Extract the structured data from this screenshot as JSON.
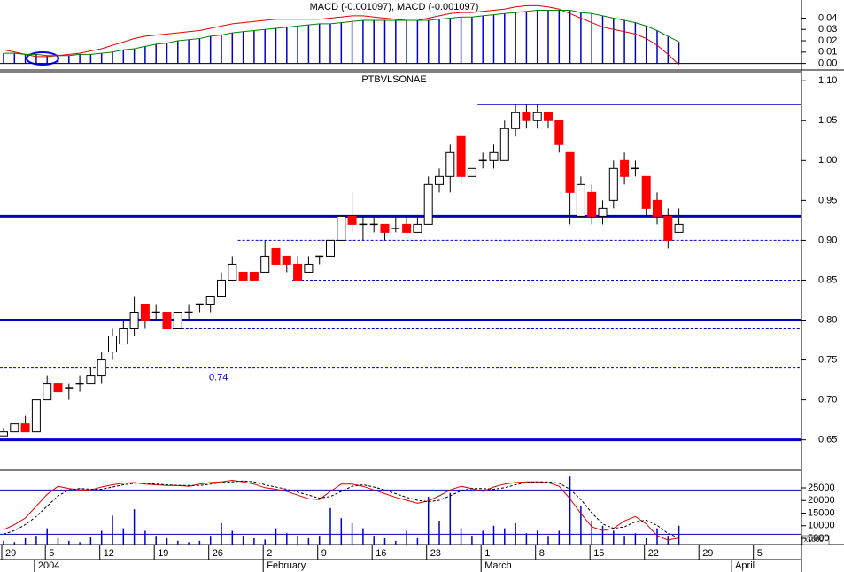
{
  "chart_data": [
    {
      "type": "macd",
      "title": "MACD (-0.001097), MACD (-0.001097)",
      "ylim": [
        -0.005,
        0.056
      ],
      "yticks": [
        {
          "value": 0,
          "label": "0.00"
        },
        0.01,
        0.02,
        0.03,
        0.04
      ],
      "bar_color": "#0000cc",
      "series": [
        {
          "color": "#e00000",
          "values": [
            0.012,
            0.01,
            0.008,
            0.006,
            0.006,
            0.007,
            0.008,
            0.009,
            0.011,
            0.013,
            0.016,
            0.019,
            0.022,
            0.024,
            0.025,
            0.026,
            0.027,
            0.028,
            0.029,
            0.031,
            0.033,
            0.035,
            0.036,
            0.037,
            0.038,
            0.039,
            0.039,
            0.039,
            0.039,
            0.039,
            0.04,
            0.041,
            0.042,
            0.042,
            0.041,
            0.04,
            0.039,
            0.038,
            0.038,
            0.04,
            0.042,
            0.044,
            0.045,
            0.045,
            0.046,
            0.047,
            0.048,
            0.05,
            0.051,
            0.051,
            0.05,
            0.048,
            0.044,
            0.04,
            0.036,
            0.032,
            0.03,
            0.028,
            0.026,
            0.022,
            0.016,
            0.008,
            -0.001097,
            null,
            null,
            null,
            null,
            null,
            null,
            null,
            null,
            null,
            null
          ]
        },
        {
          "color": "#008000",
          "values": [
            0.009,
            0.009,
            0.008,
            0.008,
            0.007,
            0.007,
            0.007,
            0.008,
            0.008,
            0.009,
            0.01,
            0.012,
            0.013,
            0.015,
            0.017,
            0.018,
            0.02,
            0.021,
            0.022,
            0.024,
            0.025,
            0.027,
            0.028,
            0.029,
            0.03,
            0.031,
            0.032,
            0.033,
            0.034,
            0.035,
            0.035,
            0.036,
            0.037,
            0.038,
            0.038,
            0.038,
            0.038,
            0.038,
            0.038,
            0.038,
            0.039,
            0.04,
            0.041,
            0.041,
            0.042,
            0.043,
            0.044,
            0.045,
            0.046,
            0.047,
            0.047,
            0.047,
            0.047,
            0.045,
            0.044,
            0.042,
            0.04,
            0.038,
            0.036,
            0.033,
            0.029,
            0.024,
            0.019,
            null,
            null,
            null,
            null,
            null,
            null,
            null,
            null,
            null,
            null
          ]
        }
      ]
    },
    {
      "type": "candlestick",
      "title": "PTBVLSONAE",
      "ylim": [
        0.613,
        1.108
      ],
      "yticks": [
        0.65,
        {
          "value": 0.7,
          "label": "0.70"
        },
        0.75,
        {
          "value": 0.8,
          "label": "0.80"
        },
        0.85,
        {
          "value": 0.9,
          "label": "0.90"
        },
        0.95,
        {
          "value": 1,
          "label": "1.00"
        },
        1.05,
        {
          "value": 1.1,
          "label": "1.10"
        }
      ],
      "up_color": "#ffffff",
      "down_color": "#ff0000",
      "open": [
        0.655,
        0.66,
        0.67,
        0.66,
        0.7,
        0.72,
        0.715,
        0.72,
        0.72,
        0.73,
        0.76,
        0.77,
        0.79,
        0.82,
        0.81,
        0.81,
        0.79,
        0.81,
        0.82,
        0.82,
        0.83,
        0.85,
        0.86,
        0.86,
        0.86,
        0.89,
        0.88,
        0.87,
        0.86,
        0.88,
        0.88,
        0.9,
        0.93,
        0.92,
        0.92,
        0.92,
        0.915,
        0.92,
        0.91,
        0.92,
        0.97,
        0.98,
        1.03,
        0.98,
        1.0,
        1.0,
        1.0,
        1.04,
        1.06,
        1.05,
        1.06,
        1.05,
        1.01,
        0.93,
        0.96,
        0.93,
        0.95,
        1.0,
        0.99,
        0.98,
        0.95,
        0.93,
        0.91,
        null,
        null,
        null,
        null,
        null,
        null,
        null,
        null,
        null,
        null
      ],
      "high": [
        0.665,
        0.67,
        0.68,
        0.7,
        0.73,
        0.73,
        0.72,
        0.73,
        0.74,
        0.76,
        0.79,
        0.8,
        0.83,
        0.82,
        0.82,
        0.81,
        0.81,
        0.82,
        0.82,
        0.83,
        0.86,
        0.88,
        0.86,
        0.86,
        0.9,
        0.89,
        0.88,
        0.88,
        0.88,
        0.88,
        0.9,
        0.93,
        0.96,
        0.93,
        0.93,
        0.92,
        0.93,
        0.93,
        0.93,
        0.98,
        0.99,
        1.02,
        1.03,
        0.99,
        1.01,
        1.02,
        1.05,
        1.07,
        1.07,
        1.07,
        1.06,
        1.05,
        1.01,
        0.98,
        0.97,
        0.95,
        1.0,
        1.01,
        1.0,
        0.98,
        0.96,
        0.94,
        0.94,
        null,
        null,
        null,
        null,
        null,
        null,
        null,
        null,
        null,
        null
      ],
      "low": [
        0.655,
        0.66,
        0.66,
        0.66,
        0.7,
        0.71,
        0.7,
        0.71,
        0.72,
        0.72,
        0.75,
        0.77,
        0.78,
        0.79,
        0.8,
        0.79,
        0.79,
        0.8,
        0.81,
        0.81,
        0.83,
        0.85,
        0.85,
        0.85,
        0.86,
        0.87,
        0.86,
        0.85,
        0.86,
        0.87,
        0.88,
        0.9,
        0.91,
        0.9,
        0.91,
        0.9,
        0.91,
        0.91,
        0.91,
        0.92,
        0.96,
        0.96,
        0.97,
        0.98,
        0.99,
        0.99,
        1.0,
        1.03,
        1.04,
        1.04,
        1.04,
        1.01,
        0.92,
        0.93,
        0.92,
        0.92,
        0.94,
        0.97,
        0.98,
        0.93,
        0.92,
        0.89,
        0.91,
        null,
        null,
        null,
        null,
        null,
        null,
        null,
        null,
        null,
        null
      ],
      "close": [
        0.66,
        0.67,
        0.66,
        0.7,
        0.72,
        0.71,
        0.715,
        0.72,
        0.73,
        0.75,
        0.78,
        0.79,
        0.81,
        0.8,
        0.81,
        0.79,
        0.81,
        0.81,
        0.82,
        0.83,
        0.85,
        0.87,
        0.85,
        0.85,
        0.88,
        0.87,
        0.87,
        0.85,
        0.87,
        0.88,
        0.9,
        0.93,
        0.92,
        0.92,
        0.92,
        0.91,
        0.915,
        0.91,
        0.92,
        0.97,
        0.98,
        1.01,
        0.98,
        0.99,
        1.0,
        1.01,
        1.04,
        1.06,
        1.05,
        1.06,
        1.05,
        1.02,
        0.96,
        0.97,
        0.93,
        0.94,
        0.99,
        0.98,
        0.99,
        0.94,
        0.93,
        0.9,
        0.92,
        null,
        null,
        null,
        null,
        null,
        null,
        null,
        null,
        null,
        null
      ],
      "hlines": [
        {
          "value": 1.07,
          "style": "thin",
          "start": 44
        },
        {
          "value": 0.93,
          "style": "thick",
          "start": 0
        },
        {
          "value": 0.9,
          "style": "dashed",
          "start": 22
        },
        {
          "value": 0.85,
          "style": "dashed",
          "start": 27
        },
        {
          "value": 0.8,
          "style": "thick",
          "start": 0
        },
        {
          "value": 0.79,
          "style": "dashed",
          "start": 16
        },
        {
          "value": 0.74,
          "style": "dashed",
          "start": 0,
          "label": "0.74"
        },
        {
          "value": 0.65,
          "style": "thick",
          "start": 0
        }
      ]
    },
    {
      "type": "volume",
      "categories": [
        "29",
        null,
        null,
        null,
        "5",
        null,
        null,
        null,
        null,
        "12",
        null,
        null,
        null,
        null,
        "19",
        null,
        null,
        null,
        null,
        "26",
        null,
        null,
        null,
        null,
        "2",
        null,
        null,
        null,
        null,
        "9",
        null,
        null,
        null,
        null,
        "16",
        null,
        null,
        null,
        null,
        "23",
        null,
        null,
        null,
        null,
        "1",
        null,
        null,
        null,
        null,
        "8",
        null,
        null,
        null,
        null,
        "15",
        null,
        null,
        null,
        null,
        "22",
        null,
        null,
        null,
        null,
        "29",
        null,
        null,
        null,
        null,
        "5",
        null,
        null,
        null
      ],
      "months": [
        null,
        null,
        null,
        "2004",
        null,
        null,
        null,
        null,
        null,
        null,
        null,
        null,
        null,
        null,
        null,
        null,
        null,
        null,
        null,
        null,
        null,
        null,
        null,
        null,
        "February",
        null,
        null,
        null,
        null,
        null,
        null,
        null,
        null,
        null,
        null,
        null,
        null,
        null,
        null,
        null,
        null,
        null,
        null,
        null,
        "March",
        null,
        null,
        null,
        null,
        null,
        null,
        null,
        null,
        null,
        null,
        null,
        null,
        null,
        null,
        null,
        null,
        null,
        null,
        null,
        null,
        null,
        null,
        "April",
        null,
        null,
        null,
        null,
        null
      ],
      "ylim": [
        2540,
        32370
      ],
      "yticks": [
        5000,
        10000,
        15000,
        20000,
        25000
      ],
      "unit": "x1000",
      "y2lim": [
        6,
        108
      ],
      "y2_levels": [
        80,
        20
      ],
      "level_color": "#0000cc",
      "series": [
        {
          "color": "#0000cc",
          "values": [
            4000,
            3500,
            5000,
            6000,
            9000,
            5000,
            4000,
            3500,
            5500,
            8000,
            14000,
            9000,
            16500,
            8000,
            6000,
            5000,
            4000,
            3500,
            4000,
            6000,
            11000,
            8000,
            6000,
            5000,
            4500,
            9000,
            7000,
            6000,
            5000,
            6000,
            17000,
            13000,
            11000,
            9000,
            6000,
            5000,
            4000,
            8000,
            5000,
            21500,
            12000,
            23000,
            9000,
            6000,
            8000,
            10000,
            9000,
            11000,
            7000,
            8000,
            6000,
            8000,
            29500,
            18000,
            12000,
            10000,
            8000,
            6000,
            7000,
            5000,
            9000,
            6000,
            10000,
            null,
            null,
            null,
            null,
            null,
            null,
            null,
            null,
            null,
            null
          ]
        },
        {
          "color": "#e00000",
          "axis": "y2",
          "values": [
            26,
            33,
            42,
            58,
            74,
            85,
            82,
            80,
            80,
            84,
            87,
            89,
            90,
            88,
            87,
            86,
            86,
            85,
            88,
            90,
            91,
            93,
            91,
            88,
            83,
            81,
            78,
            73,
            68,
            67,
            78,
            88,
            88,
            85,
            80,
            75,
            70,
            66,
            62,
            65,
            72,
            80,
            85,
            82,
            78,
            84,
            88,
            90,
            91,
            91,
            90,
            85,
            68,
            48,
            30,
            25,
            28,
            38,
            44,
            34,
            18,
            12,
            15,
            null,
            null,
            null,
            null,
            null,
            null,
            null,
            null,
            null,
            null
          ]
        },
        {
          "color": "#000000",
          "axis": "y2",
          "dashed": true,
          "values": [
            20,
            25,
            33,
            44,
            58,
            72,
            80,
            82,
            81,
            81,
            84,
            87,
            89,
            89,
            88,
            87,
            86,
            86,
            86,
            88,
            90,
            91,
            92,
            91,
            87,
            84,
            81,
            77,
            73,
            69,
            71,
            78,
            85,
            87,
            84,
            80,
            75,
            70,
            66,
            64,
            66,
            72,
            79,
            82,
            82,
            81,
            83,
            87,
            90,
            91,
            91,
            89,
            81,
            67,
            49,
            34,
            28,
            30,
            37,
            39,
            32,
            21,
            15,
            null,
            null,
            null,
            null,
            null,
            null,
            null,
            null,
            null,
            null
          ]
        }
      ]
    }
  ]
}
